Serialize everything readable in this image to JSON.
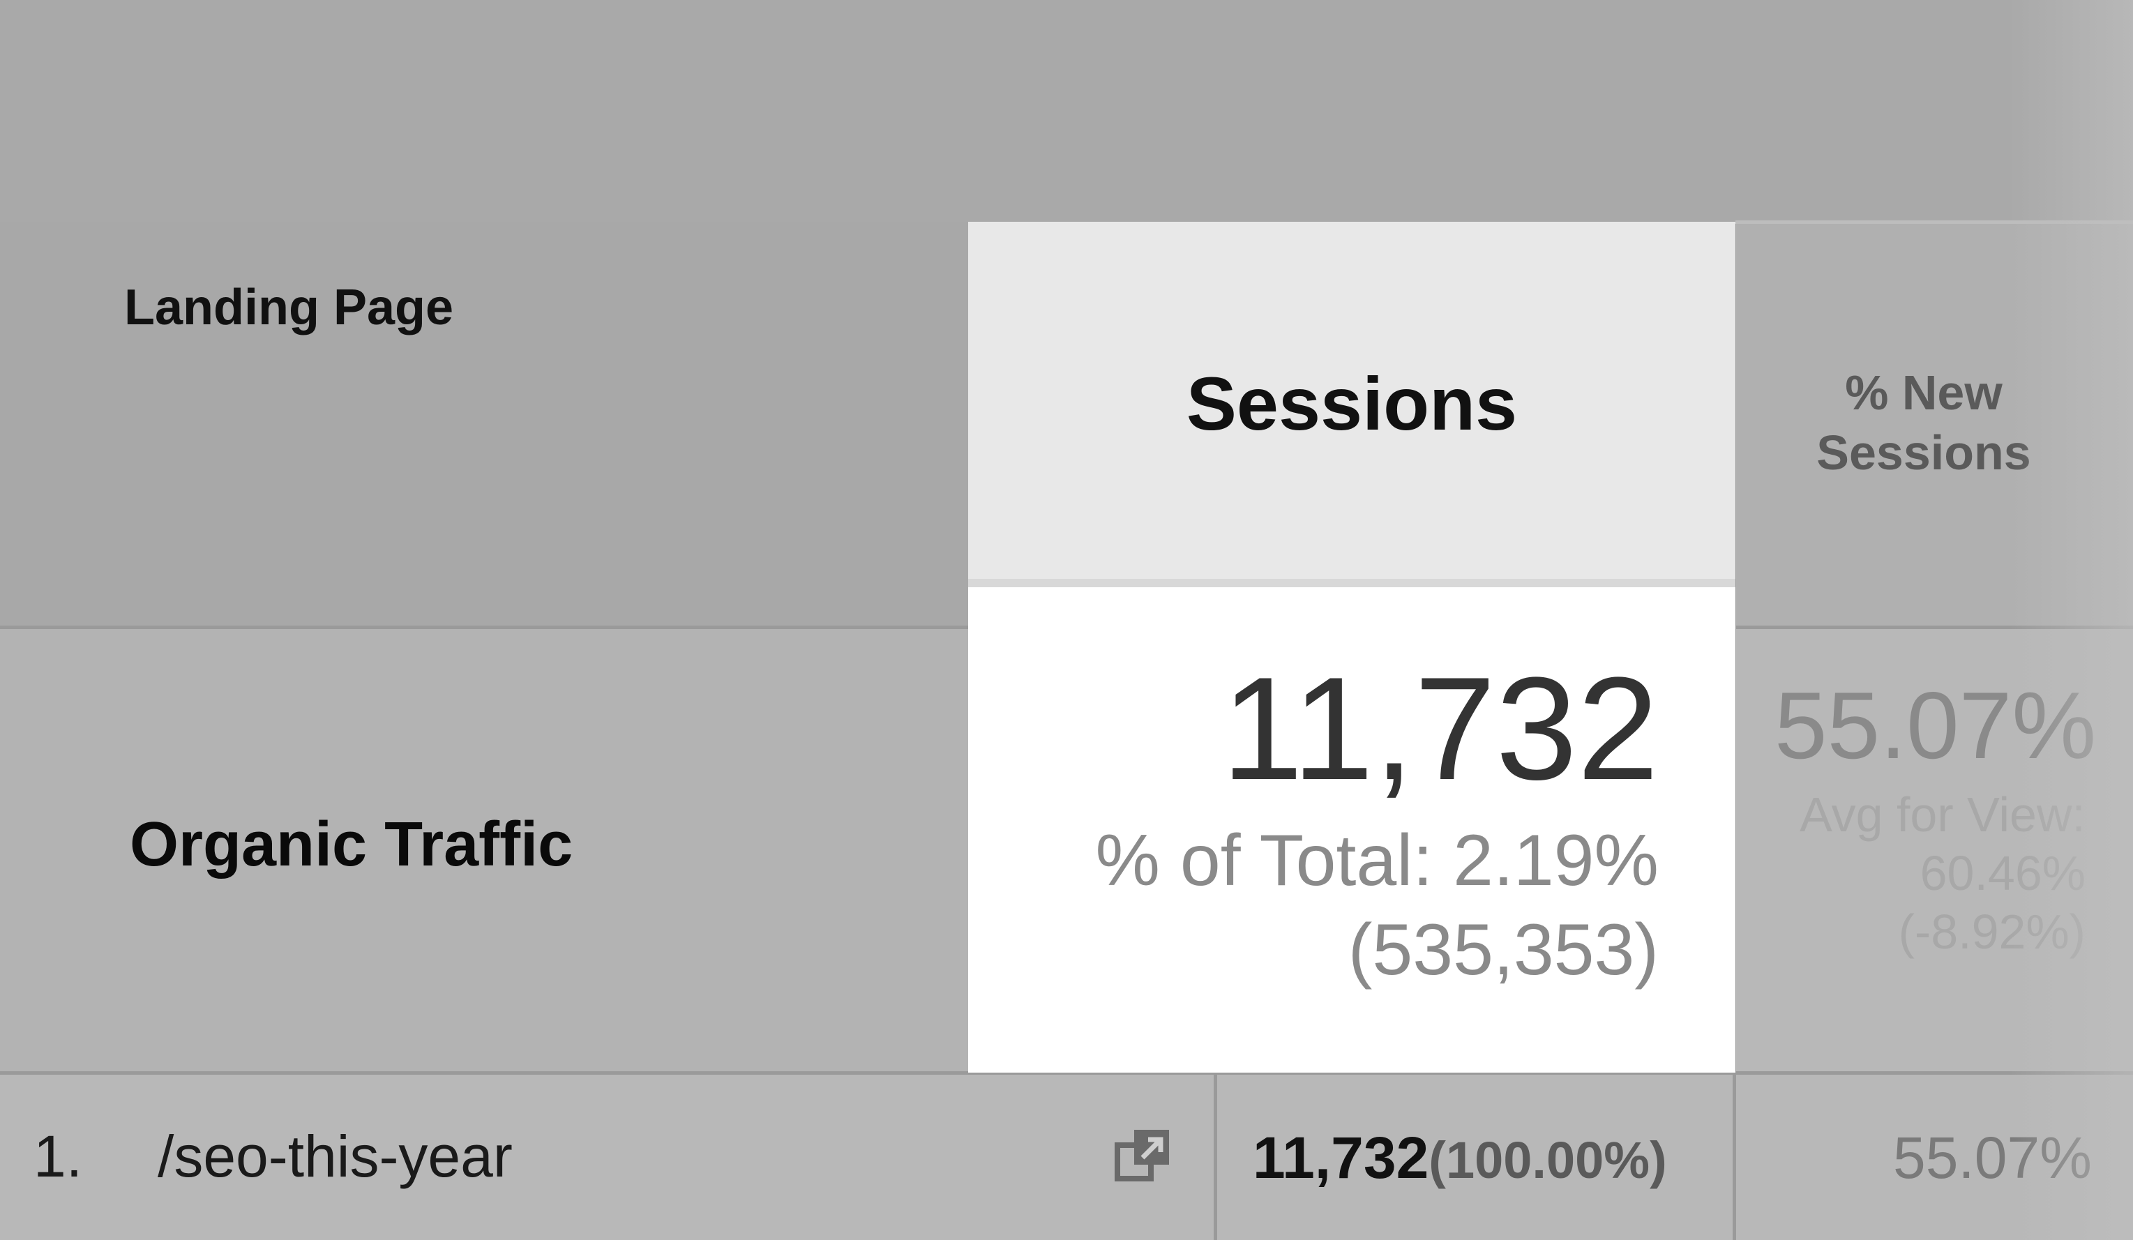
{
  "table": {
    "headers": {
      "landing_page": "Landing Page",
      "sessions": "Sessions",
      "new_sessions_line1": "% New",
      "new_sessions_line2": "Sessions"
    },
    "segment": {
      "label": "Organic Traffic",
      "sessions_total": "11,732",
      "sessions_pct_line1": "% of Total: 2.19%",
      "sessions_pct_line2": "(535,353)",
      "new_sessions_total": "55.07%",
      "new_sessions_avg_line1": "Avg for View:",
      "new_sessions_avg_line2": "60.46%",
      "new_sessions_avg_line3": "(-8.92%)"
    },
    "rows": [
      {
        "index": "1.",
        "page": "/seo-this-year",
        "icon": "open-in-new-window-icon",
        "sessions": "11,732",
        "sessions_pct": "(100.00%)",
        "new_sessions": "55.07%"
      }
    ]
  },
  "colors": {
    "highlight_header": "#e8e8e8",
    "highlight_body": "#ffffff",
    "background": "#a9a9a9"
  }
}
